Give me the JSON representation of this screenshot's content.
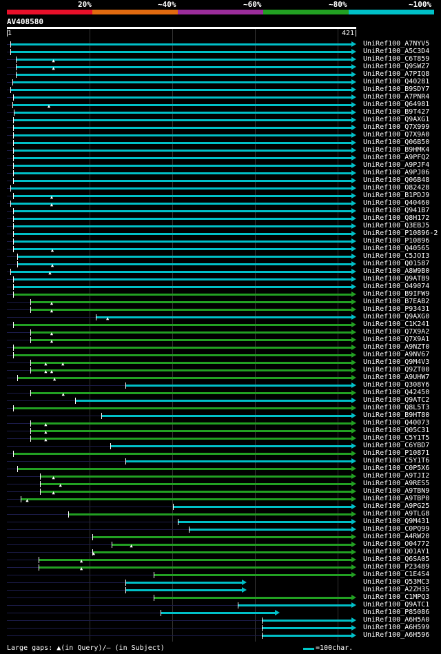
{
  "colors": {
    "red": "#e8102a",
    "orange": "#e06a10",
    "purple": "#9b2d9b",
    "green": "#22a022",
    "cyan": "#00c0c8"
  },
  "scale_labels": [
    "20%",
    "~40%",
    "~60%",
    "~80%",
    "~100%"
  ],
  "query": {
    "id": "AV408580",
    "start": "1",
    "end": "421"
  },
  "footer": {
    "gaps": "Large gaps: ▲(in Query)/– (in Subject)",
    "legend": "=100char."
  },
  "hits": [
    {
      "name": "UniRef100_A7NYV5",
      "c": "cyan",
      "s": 0.01,
      "e": 0.998,
      "g": []
    },
    {
      "name": "UniRef100_A5C3D4",
      "c": "cyan",
      "s": 0.01,
      "e": 0.998,
      "g": []
    },
    {
      "name": "UniRef100_C6T859",
      "c": "cyan",
      "s": 0.025,
      "e": 0.998,
      "g": [
        0.135
      ]
    },
    {
      "name": "UniRef100_Q9SWZ7",
      "c": "cyan",
      "s": 0.025,
      "e": 0.998,
      "g": [
        0.135
      ]
    },
    {
      "name": "UniRef100_A7PIQ8",
      "c": "cyan",
      "s": 0.025,
      "e": 0.998,
      "g": []
    },
    {
      "name": "UniRef100_Q40281",
      "c": "cyan",
      "s": 0.015,
      "e": 0.998,
      "g": []
    },
    {
      "name": "UniRef100_B9SDY7",
      "c": "cyan",
      "s": 0.01,
      "e": 0.998,
      "g": []
    },
    {
      "name": "UniRef100_A7PNR4",
      "c": "cyan",
      "s": 0.018,
      "e": 0.998,
      "g": []
    },
    {
      "name": "UniRef100_Q64981",
      "c": "cyan",
      "s": 0.015,
      "e": 0.998,
      "g": [
        0.122
      ]
    },
    {
      "name": "UniRef100_B9T427",
      "c": "cyan",
      "s": 0.02,
      "e": 0.998,
      "g": []
    },
    {
      "name": "UniRef100_Q9AXG1",
      "c": "cyan",
      "s": 0.018,
      "e": 0.998,
      "g": []
    },
    {
      "name": "UniRef100_Q7X999",
      "c": "cyan",
      "s": 0.018,
      "e": 0.998,
      "g": []
    },
    {
      "name": "UniRef100_Q7X9A0",
      "c": "cyan",
      "s": 0.018,
      "e": 0.998,
      "g": []
    },
    {
      "name": "UniRef100_Q06B50",
      "c": "cyan",
      "s": 0.018,
      "e": 0.998,
      "g": []
    },
    {
      "name": "UniRef100_B9HMK4",
      "c": "cyan",
      "s": 0.018,
      "e": 0.998,
      "g": []
    },
    {
      "name": "UniRef100_A9PFQ2",
      "c": "cyan",
      "s": 0.018,
      "e": 0.998,
      "g": []
    },
    {
      "name": "UniRef100_A9PJF4",
      "c": "cyan",
      "s": 0.018,
      "e": 0.998,
      "g": []
    },
    {
      "name": "UniRef100_A9PJ06",
      "c": "cyan",
      "s": 0.018,
      "e": 0.998,
      "g": []
    },
    {
      "name": "UniRef100_Q06B48",
      "c": "cyan",
      "s": 0.018,
      "e": 0.998,
      "g": []
    },
    {
      "name": "UniRef100_O82428",
      "c": "cyan",
      "s": 0.01,
      "e": 0.998,
      "g": []
    },
    {
      "name": "UniRef100_B1PDJ9",
      "c": "cyan",
      "s": 0.018,
      "e": 0.998,
      "g": [
        0.13
      ]
    },
    {
      "name": "UniRef100_Q40460",
      "c": "cyan",
      "s": 0.01,
      "e": 0.998,
      "g": [
        0.13
      ]
    },
    {
      "name": "UniRef100_Q941B7",
      "c": "cyan",
      "s": 0.018,
      "e": 0.998,
      "g": []
    },
    {
      "name": "UniRef100_Q8H172",
      "c": "cyan",
      "s": 0.018,
      "e": 0.998,
      "g": []
    },
    {
      "name": "UniRef100_Q3EBJ5",
      "c": "cyan",
      "s": 0.018,
      "e": 0.998,
      "g": []
    },
    {
      "name": "UniRef100_P10896-2",
      "c": "cyan",
      "s": 0.018,
      "e": 0.998,
      "g": []
    },
    {
      "name": "UniRef100_P10896",
      "c": "cyan",
      "s": 0.018,
      "e": 0.998,
      "g": []
    },
    {
      "name": "UniRef100_Q40565",
      "c": "cyan",
      "s": 0.018,
      "e": 0.998,
      "g": [
        0.132
      ]
    },
    {
      "name": "UniRef100_C5JOI3",
      "c": "cyan",
      "s": 0.03,
      "e": 0.998,
      "g": []
    },
    {
      "name": "UniRef100_Q01587",
      "c": "cyan",
      "s": 0.03,
      "e": 0.998,
      "g": [
        0.132
      ]
    },
    {
      "name": "UniRef100_A8W9B0",
      "c": "cyan",
      "s": 0.01,
      "e": 0.998,
      "g": [
        0.125
      ]
    },
    {
      "name": "UniRef100_Q9ATB9",
      "c": "cyan",
      "s": 0.018,
      "e": 0.998,
      "g": []
    },
    {
      "name": "UniRef100_O49074",
      "c": "cyan",
      "s": 0.018,
      "e": 0.998,
      "g": []
    },
    {
      "name": "UniRef100_B9IFW9",
      "c": "green",
      "s": 0.018,
      "e": 0.998,
      "g": []
    },
    {
      "name": "UniRef100_B7EAB2",
      "c": "green",
      "s": 0.068,
      "e": 0.998,
      "g": [
        0.13
      ]
    },
    {
      "name": "UniRef100_P93431",
      "c": "green",
      "s": 0.068,
      "e": 0.998,
      "g": [
        0.13
      ]
    },
    {
      "name": "UniRef100_Q9AXG0",
      "c": "cyan",
      "s": 0.255,
      "e": 0.998,
      "g": [
        0.29
      ]
    },
    {
      "name": "UniRef100_C1K241",
      "c": "green",
      "s": 0.018,
      "e": 0.998,
      "g": []
    },
    {
      "name": "UniRef100_Q7X9A2",
      "c": "green",
      "s": 0.068,
      "e": 0.998,
      "g": [
        0.13
      ]
    },
    {
      "name": "UniRef100_Q7X9A1",
      "c": "green",
      "s": 0.068,
      "e": 0.998,
      "g": [
        0.13
      ]
    },
    {
      "name": "UniRef100_A9NZT0",
      "c": "green",
      "s": 0.018,
      "e": 0.998,
      "g": []
    },
    {
      "name": "UniRef100_A9NV67",
      "c": "green",
      "s": 0.018,
      "e": 0.998,
      "g": []
    },
    {
      "name": "UniRef100_Q9M4V3",
      "c": "green",
      "s": 0.068,
      "e": 0.998,
      "g": [
        0.113,
        0.162
      ]
    },
    {
      "name": "UniRef100_Q9ZT00",
      "c": "green",
      "s": 0.068,
      "e": 0.998,
      "g": [
        0.113,
        0.13
      ]
    },
    {
      "name": "UniRef100_A9UHW7",
      "c": "green",
      "s": 0.03,
      "e": 0.998,
      "g": [
        0.138
      ]
    },
    {
      "name": "UniRef100_Q308Y6",
      "c": "cyan",
      "s": 0.34,
      "e": 0.998,
      "g": []
    },
    {
      "name": "UniRef100_Q42450",
      "c": "green",
      "s": 0.068,
      "e": 0.998,
      "g": [
        0.163
      ]
    },
    {
      "name": "UniRef100_Q9ATC2",
      "c": "cyan",
      "s": 0.195,
      "e": 0.998,
      "g": []
    },
    {
      "name": "UniRef100_Q8L5T3",
      "c": "green",
      "s": 0.018,
      "e": 0.998,
      "g": []
    },
    {
      "name": "UniRef100_B9HT80",
      "c": "cyan",
      "s": 0.27,
      "e": 0.998,
      "g": []
    },
    {
      "name": "UniRef100_Q40073",
      "c": "green",
      "s": 0.068,
      "e": 0.998,
      "g": [
        0.113
      ]
    },
    {
      "name": "UniRef100_Q05C31",
      "c": "green",
      "s": 0.068,
      "e": 0.998,
      "g": [
        0.113
      ]
    },
    {
      "name": "UniRef100_C5Y1T5",
      "c": "green",
      "s": 0.068,
      "e": 0.998,
      "g": [
        0.113
      ]
    },
    {
      "name": "UniRef100_C6YBD7",
      "c": "cyan",
      "s": 0.295,
      "e": 0.998,
      "g": []
    },
    {
      "name": "UniRef100_P10871",
      "c": "green",
      "s": 0.018,
      "e": 0.998,
      "g": []
    },
    {
      "name": "UniRef100_C5Y1T6",
      "c": "cyan",
      "s": 0.34,
      "e": 0.998,
      "g": []
    },
    {
      "name": "UniRef100_C0P5X6",
      "c": "green",
      "s": 0.03,
      "e": 0.998,
      "g": []
    },
    {
      "name": "UniRef100_A9TJI2",
      "c": "green",
      "s": 0.095,
      "e": 0.998,
      "g": [
        0.135
      ]
    },
    {
      "name": "UniRef100_A9RES5",
      "c": "green",
      "s": 0.095,
      "e": 0.998,
      "g": [
        0.155
      ]
    },
    {
      "name": "UniRef100_A9TBN9",
      "c": "green",
      "s": 0.095,
      "e": 0.998,
      "g": [
        0.135
      ]
    },
    {
      "name": "UniRef100_A9TBP0",
      "c": "green",
      "s": 0.04,
      "e": 0.998,
      "g": [
        0.06
      ]
    },
    {
      "name": "UniRef100_A9PG25",
      "c": "cyan",
      "s": 0.475,
      "e": 0.998,
      "g": []
    },
    {
      "name": "UniRef100_A9TLG8",
      "c": "green",
      "s": 0.175,
      "e": 0.998,
      "g": []
    },
    {
      "name": "UniRef100_Q9M431",
      "c": "cyan",
      "s": 0.49,
      "e": 0.998,
      "g": []
    },
    {
      "name": "UniRef100_C0PQ99",
      "c": "cyan",
      "s": 0.52,
      "e": 0.998,
      "g": []
    },
    {
      "name": "UniRef100_A4RW20",
      "c": "green",
      "s": 0.245,
      "e": 0.998,
      "g": []
    },
    {
      "name": "UniRef100_O04772",
      "c": "green",
      "s": 0.3,
      "e": 0.998,
      "g": [
        0.358
      ]
    },
    {
      "name": "UniRef100_Q01AY1",
      "c": "green",
      "s": 0.245,
      "e": 0.998,
      "g": [
        0.25
      ]
    },
    {
      "name": "UniRef100_Q6SA05",
      "c": "green",
      "s": 0.09,
      "e": 0.998,
      "g": [
        0.215
      ]
    },
    {
      "name": "UniRef100_P23489",
      "c": "green",
      "s": 0.09,
      "e": 0.998,
      "g": [
        0.215
      ]
    },
    {
      "name": "UniRef100_C1E4S4",
      "c": "green",
      "s": 0.42,
      "e": 0.998,
      "g": []
    },
    {
      "name": "UniRef100_Q53MC3",
      "c": "cyan",
      "s": 0.34,
      "e": 0.685,
      "g": []
    },
    {
      "name": "UniRef100_A2ZH35",
      "c": "cyan",
      "s": 0.34,
      "e": 0.685,
      "g": []
    },
    {
      "name": "UniRef100_C1MPQ3",
      "c": "green",
      "s": 0.42,
      "e": 0.998,
      "g": []
    },
    {
      "name": "UniRef100_Q9ATC1",
      "c": "cyan",
      "s": 0.66,
      "e": 0.998,
      "g": []
    },
    {
      "name": "UniRef100_P85086",
      "c": "cyan",
      "s": 0.44,
      "e": 0.78,
      "g": []
    },
    {
      "name": "UniRef100_A6H5A0",
      "c": "cyan",
      "s": 0.73,
      "e": 0.998,
      "g": []
    },
    {
      "name": "UniRef100_A6H599",
      "c": "cyan",
      "s": 0.73,
      "e": 0.998,
      "g": []
    },
    {
      "name": "UniRef100_A6H596",
      "c": "cyan",
      "s": 0.73,
      "e": 0.998,
      "g": []
    }
  ]
}
